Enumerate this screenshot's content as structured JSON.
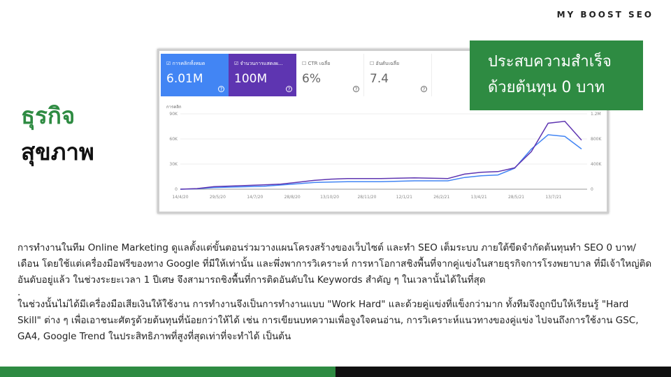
{
  "brand": "MY BOOST SEO",
  "headline": {
    "line1": "ประสบความสำเร็จ",
    "line2": "ด้วยต้นทุน 0 บาท"
  },
  "title": {
    "line1": "ธุรกิจ",
    "line2": "สุขภาพ"
  },
  "metrics": [
    {
      "label": "การคลิกทั้งหมด",
      "value": "6.01M",
      "checked": true,
      "color": "#4285f4"
    },
    {
      "label": "จำนวนการแสดงผ...",
      "value": "100M",
      "checked": true,
      "color": "#5e35b1"
    },
    {
      "label": "CTR เฉลี่ย",
      "value": "6%",
      "checked": false
    },
    {
      "label": "อันดับเฉลี่ย",
      "value": "7.4",
      "checked": false
    }
  ],
  "chart_data": {
    "type": "line",
    "ylabel": "การคลิก",
    "x_ticks": [
      "14/4/20",
      "29/5/20",
      "14/7/20",
      "28/8/20",
      "13/10/20",
      "28/11/20",
      "12/1/21",
      "26/2/21",
      "13/4/21",
      "28/5/21",
      "13/7/21"
    ],
    "y_left_ticks": [
      "0",
      "30K",
      "60K",
      "90K"
    ],
    "y_right_ticks": [
      "0",
      "400K",
      "800K",
      "1.2M"
    ],
    "ylim_left": [
      0,
      90000
    ],
    "ylim_right": [
      0,
      1200000
    ],
    "grid": true,
    "series": [
      {
        "name": "การคลิกทั้งหมด",
        "color": "#4285f4",
        "axis": "left",
        "values": [
          0,
          500,
          2000,
          2500,
          3000,
          3500,
          5000,
          6500,
          8000,
          8500,
          9000,
          9000,
          9000,
          9500,
          10000,
          10000,
          10000,
          14000,
          16000,
          17000,
          25000,
          48000,
          65000,
          63000,
          48000
        ]
      },
      {
        "name": "จำนวนการแสดงผล",
        "color": "#5e35b1",
        "axis": "right",
        "values": [
          0,
          10000,
          40000,
          50000,
          60000,
          70000,
          80000,
          110000,
          140000,
          160000,
          170000,
          170000,
          170000,
          175000,
          180000,
          175000,
          170000,
          240000,
          270000,
          280000,
          340000,
          600000,
          1050000,
          1080000,
          780000
        ]
      }
    ]
  },
  "body": {
    "p1": "การทำงานในทีม Online Marketing ดูแลตั้งแต่ขั้นตอนร่วมวางแผนโครงสร้างของเว็บไซต์ และทำ SEO เต็มระบบ ภายใต้ขีดจำกัดต้นทุนทำ SEO 0 บาท/เดือน โดยใช้แต่เครื่องมือฟรีของทาง Google ที่มีให้เท่านั้น และพึ่งพาการวิเคราะห์ การหาโอกาสชิงพื้นที่จากคู่แข่งในสายธุรกิจการโรงพยาบาล ที่มีเจ้าใหญ่ติดอันดับอยู่แล้ว ในช่วงระยะเวลา 1 ปีเศษ จึงสามารถชิงพื้นที่การติดอันดับใน Keywords สำคัญ ๆ ในเวลานั้นได้ในที่สุด",
    "dot": ".",
    "p2": "ในช่วงนั้นไม่ได้มีเครื่องมือเสียเงินให้ใช้งาน การทำงานจึงเป็นการทำงานแบบ \"Work Hard\" และด้วยคู่แข่งที่แข็งกว่ามาก ทั้งทีมจึงถูกบีบให้เรียนรู้ \"Hard Skill\" ต่าง ๆ เพื่อเอาชนะศัตรูด้วยต้นทุนที่น้อยกว่าให้ได้ เช่น การเขียนบทความเพื่อจูงใจคนอ่าน, การวิเคราะห์แนวทางของคู่แข่ง ไปจนถึงการใช้งาน GSC, GA4, Google Trend ในประสิทธิภาพที่สูงที่สุดเท่าที่จะทำได้ เป็นต้น"
  }
}
